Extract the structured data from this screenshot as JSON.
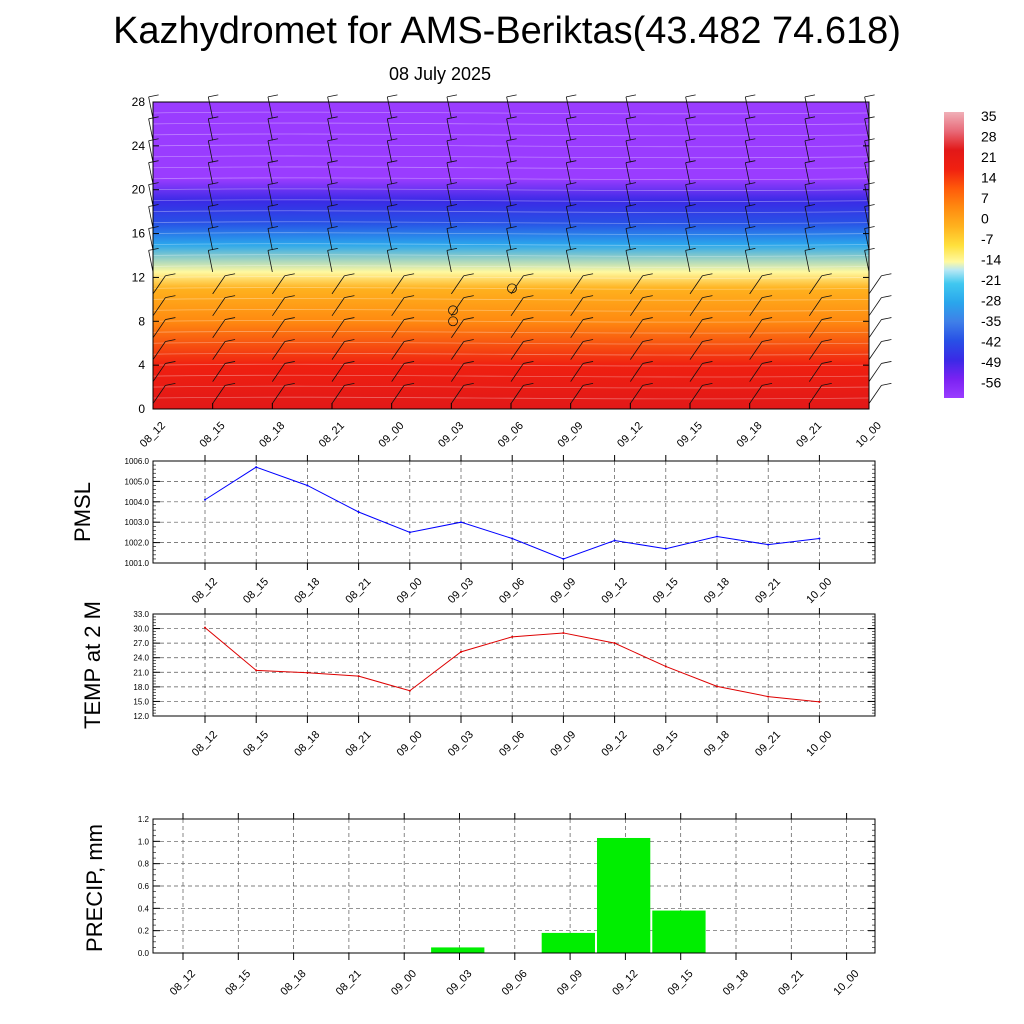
{
  "header": {
    "title": "Kazhydromet for AMS-Beriktas(43.482 74.618)",
    "date": "08 July 2025"
  },
  "colors": {
    "pmsl_line": "#0000ff",
    "temp_line": "#dd0000",
    "precip_bar": "#00ee00"
  },
  "chart_data": [
    {
      "type": "heatmap",
      "panel": "cross-section",
      "x_ticks": [
        "08_12",
        "08_15",
        "08_18",
        "08_21",
        "09_00",
        "09_03",
        "09_06",
        "09_09",
        "09_12",
        "09_15",
        "09_18",
        "09_21",
        "10_00"
      ],
      "y_ticks": [
        0,
        4,
        8,
        12,
        16,
        20,
        24,
        28
      ],
      "ylim": [
        0,
        28
      ],
      "overlay": "wind barbs",
      "colorbar": {
        "labels": [
          "35",
          "28",
          "21",
          "14",
          "7",
          "0",
          "-7",
          "-14",
          "-21",
          "-28",
          "-35",
          "-42",
          "-49",
          "-56"
        ],
        "range": [
          -63,
          42
        ]
      },
      "temperature_profile": [
        {
          "height": 0,
          "value": 30
        },
        {
          "height": 4,
          "value": 22
        },
        {
          "height": 8,
          "value": 12
        },
        {
          "height": 11,
          "value": 2
        },
        {
          "height": 12.5,
          "value": -12
        },
        {
          "height": 15,
          "value": -24
        },
        {
          "height": 17,
          "value": -36
        },
        {
          "height": 19,
          "value": -46
        },
        {
          "height": 21,
          "value": -58
        },
        {
          "height": 24,
          "value": -60
        },
        {
          "height": 28,
          "value": -60
        }
      ]
    },
    {
      "type": "line",
      "ylabel": "PMSL",
      "categories": [
        "08_12",
        "08_15",
        "08_18",
        "08_21",
        "09_00",
        "09_03",
        "09_06",
        "09_09",
        "09_12",
        "09_15",
        "09_18",
        "09_21",
        "10_00"
      ],
      "values": [
        1004.1,
        1005.7,
        1004.8,
        1003.5,
        1002.5,
        1003.0,
        1002.2,
        1001.2,
        1002.1,
        1001.7,
        1002.3,
        1001.9,
        1002.2
      ],
      "ylim": [
        1001.0,
        1006.0
      ],
      "yticks": [
        "1001.0",
        "1002.0",
        "1003.0",
        "1004.0",
        "1005.0",
        "1006.0"
      ],
      "grid": true
    },
    {
      "type": "line",
      "ylabel": "TEMP at 2 M",
      "categories": [
        "08_12",
        "08_15",
        "08_18",
        "08_21",
        "09_00",
        "09_03",
        "09_06",
        "09_09",
        "09_12",
        "09_15",
        "09_18",
        "09_21",
        "10_00"
      ],
      "values": [
        30.2,
        21.4,
        20.9,
        20.2,
        17.2,
        25.2,
        28.3,
        29.1,
        27.0,
        22.2,
        18.1,
        16.0,
        14.9
      ],
      "ylim": [
        12.0,
        33.0
      ],
      "yticks": [
        "12.0",
        "15.0",
        "18.0",
        "21.0",
        "24.0",
        "27.0",
        "30.0",
        "33.0"
      ],
      "grid": true
    },
    {
      "type": "bar",
      "ylabel": "PRECIP, mm",
      "categories": [
        "08_12",
        "08_15",
        "08_18",
        "08_21",
        "09_00",
        "09_03",
        "09_06",
        "09_09",
        "09_12",
        "09_15",
        "09_18",
        "09_21",
        "10_00"
      ],
      "values": [
        0,
        0,
        0,
        0,
        0,
        0.05,
        0,
        0.18,
        1.03,
        0.38,
        0,
        0,
        0
      ],
      "ylim": [
        0.0,
        1.2
      ],
      "yticks": [
        "0.0",
        "0.2",
        "0.4",
        "0.6",
        "0.8",
        "1.0",
        "1.2"
      ],
      "grid": true
    }
  ]
}
